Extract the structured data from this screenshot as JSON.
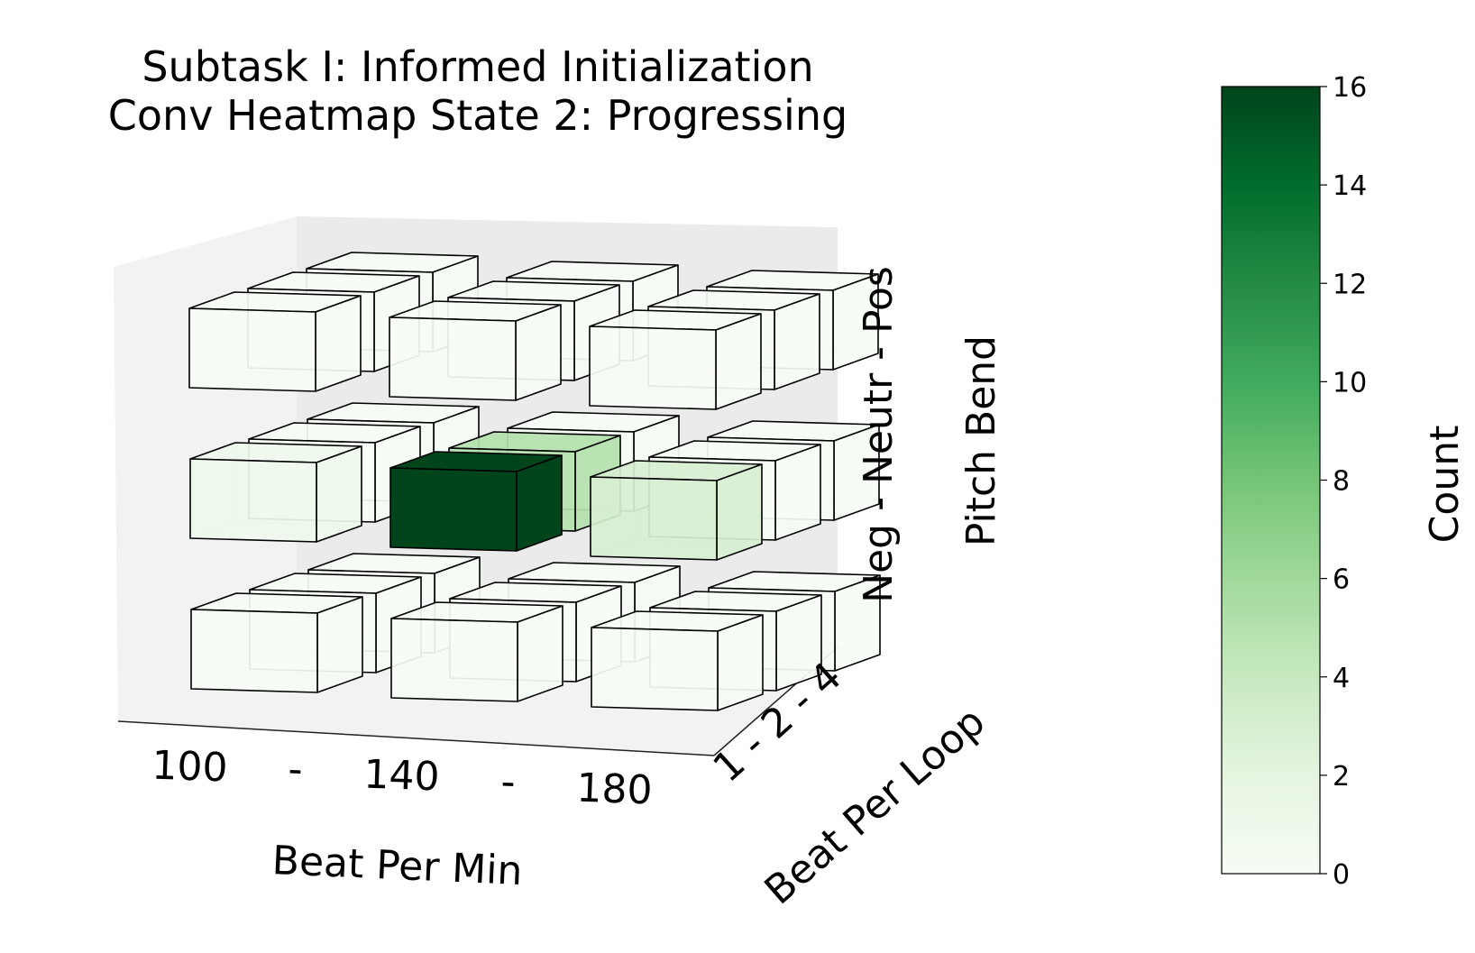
{
  "chart_data": {
    "type": "heatmap",
    "title": [
      "Subtask I: Informed Initialization",
      "Conv Heatmap State 2: Progressing"
    ],
    "xlabel": "Beat Per Min",
    "ylabel": "Beat Per Loop",
    "zlabel": "Pitch Bend",
    "x_tick_text": [
      "100",
      "-",
      "140",
      "-",
      "180"
    ],
    "x_categories": [
      "100",
      "140",
      "180"
    ],
    "y_tick_text": "1 - 2 - 4",
    "y_categories": [
      "1",
      "2",
      "4"
    ],
    "z_tick_text": "Neg - Neutr - Pos",
    "z_categories": [
      "Neg",
      "Neutr",
      "Pos"
    ],
    "cells": [
      {
        "bpm": "100",
        "bpl": "1",
        "pitch": "Neg",
        "count": 0
      },
      {
        "bpm": "100",
        "bpl": "2",
        "pitch": "Neg",
        "count": 0
      },
      {
        "bpm": "100",
        "bpl": "4",
        "pitch": "Neg",
        "count": 0
      },
      {
        "bpm": "140",
        "bpl": "1",
        "pitch": "Neg",
        "count": 0
      },
      {
        "bpm": "140",
        "bpl": "2",
        "pitch": "Neg",
        "count": 0
      },
      {
        "bpm": "140",
        "bpl": "4",
        "pitch": "Neg",
        "count": 0
      },
      {
        "bpm": "180",
        "bpl": "1",
        "pitch": "Neg",
        "count": 0
      },
      {
        "bpm": "180",
        "bpl": "2",
        "pitch": "Neg",
        "count": 0
      },
      {
        "bpm": "180",
        "bpl": "4",
        "pitch": "Neg",
        "count": 0
      },
      {
        "bpm": "100",
        "bpl": "1",
        "pitch": "Neutr",
        "count": 1
      },
      {
        "bpm": "100",
        "bpl": "2",
        "pitch": "Neutr",
        "count": 0
      },
      {
        "bpm": "100",
        "bpl": "4",
        "pitch": "Neutr",
        "count": 0
      },
      {
        "bpm": "140",
        "bpl": "1",
        "pitch": "Neutr",
        "count": 16
      },
      {
        "bpm": "140",
        "bpl": "2",
        "pitch": "Neutr",
        "count": 5
      },
      {
        "bpm": "140",
        "bpl": "4",
        "pitch": "Neutr",
        "count": 0
      },
      {
        "bpm": "180",
        "bpl": "1",
        "pitch": "Neutr",
        "count": 3
      },
      {
        "bpm": "180",
        "bpl": "2",
        "pitch": "Neutr",
        "count": 0
      },
      {
        "bpm": "180",
        "bpl": "4",
        "pitch": "Neutr",
        "count": 0
      },
      {
        "bpm": "100",
        "bpl": "1",
        "pitch": "Pos",
        "count": 0
      },
      {
        "bpm": "100",
        "bpl": "2",
        "pitch": "Pos",
        "count": 0
      },
      {
        "bpm": "100",
        "bpl": "4",
        "pitch": "Pos",
        "count": 0
      },
      {
        "bpm": "140",
        "bpl": "1",
        "pitch": "Pos",
        "count": 0
      },
      {
        "bpm": "140",
        "bpl": "2",
        "pitch": "Pos",
        "count": 0
      },
      {
        "bpm": "140",
        "bpl": "4",
        "pitch": "Pos",
        "count": 0
      },
      {
        "bpm": "180",
        "bpl": "1",
        "pitch": "Pos",
        "count": 0
      },
      {
        "bpm": "180",
        "bpl": "2",
        "pitch": "Pos",
        "count": 0
      },
      {
        "bpm": "180",
        "bpl": "4",
        "pitch": "Pos",
        "count": 0
      }
    ],
    "colorbar": {
      "label": "Count",
      "min": 0,
      "max": 16,
      "ticks": [
        "0",
        "2",
        "4",
        "6",
        "8",
        "10",
        "12",
        "14",
        "16"
      ],
      "colormap": "Greens"
    },
    "grid": false,
    "legend": "none"
  }
}
